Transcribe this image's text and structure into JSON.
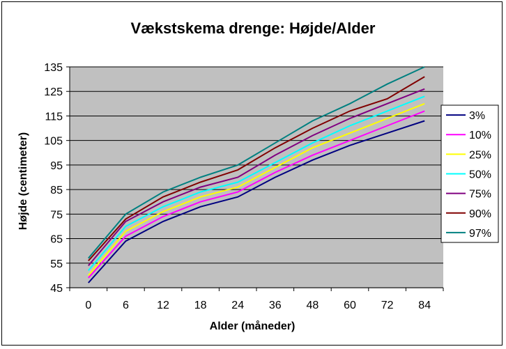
{
  "chart_data": {
    "type": "line",
    "title": "Vækstskema drenge: Højde/Alder",
    "xlabel": "Alder (måneder)",
    "ylabel": "Højde (centimeter)",
    "categories": [
      "0",
      "6",
      "12",
      "18",
      "24",
      "36",
      "48",
      "60",
      "72",
      "84"
    ],
    "ylim": [
      45,
      135
    ],
    "yticks": [
      45,
      55,
      65,
      75,
      85,
      95,
      105,
      115,
      125,
      135
    ],
    "grid": true,
    "plot_background": "#c0c0c0",
    "legend_position": "right",
    "series": [
      {
        "name": "3%",
        "color": "#000080",
        "values": [
          47,
          64,
          72,
          78,
          82,
          90,
          97,
          103,
          108,
          113
        ]
      },
      {
        "name": "10%",
        "color": "#ff00ff",
        "values": [
          49,
          66,
          74,
          80,
          84,
          92,
          99,
          105,
          111,
          117
        ]
      },
      {
        "name": "25%",
        "color": "#ffff00",
        "values": [
          50,
          68,
          76,
          82,
          86,
          94,
          102,
          108,
          114,
          120
        ]
      },
      {
        "name": "50%",
        "color": "#00ffff",
        "values": [
          52,
          70,
          78,
          84,
          88,
          96,
          104,
          111,
          117,
          123
        ]
      },
      {
        "name": "75%",
        "color": "#800080",
        "values": [
          54,
          72,
          80,
          86,
          90,
          99,
          107,
          114,
          120,
          126
        ]
      },
      {
        "name": "90%",
        "color": "#800000",
        "values": [
          56,
          73,
          82,
          88,
          93,
          102,
          110,
          117,
          122,
          131
        ]
      },
      {
        "name": "97%",
        "color": "#008080",
        "values": [
          57,
          75,
          84,
          90,
          95,
          104,
          113,
          120,
          128,
          135
        ]
      }
    ]
  }
}
